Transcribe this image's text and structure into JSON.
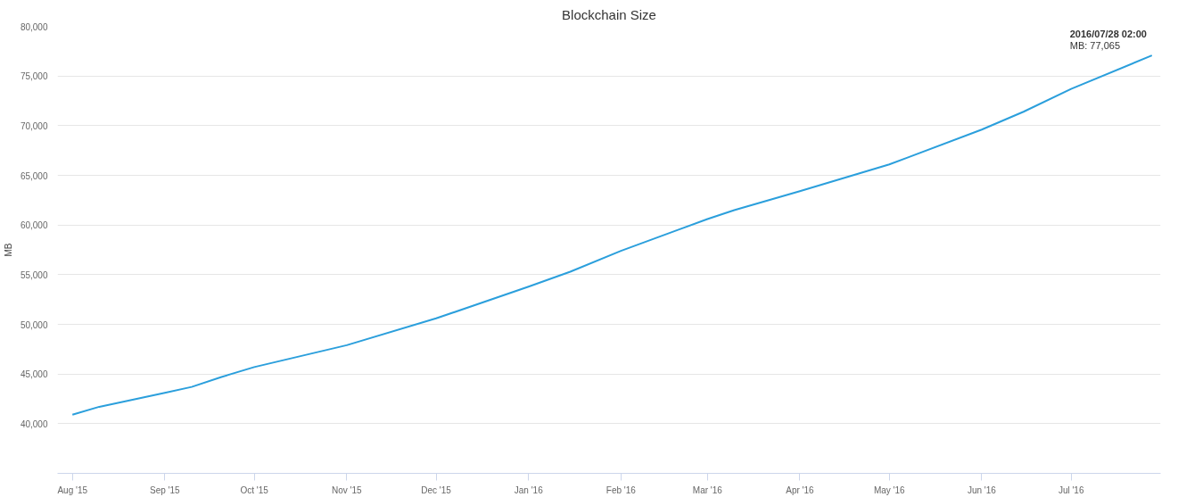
{
  "chart_data": {
    "type": "line",
    "title": "Blockchain Size",
    "ylabel": "MB",
    "x": [
      "2015-08-01",
      "2015-08-10",
      "2015-09-01",
      "2015-09-10",
      "2015-09-20",
      "2015-10-01",
      "2015-11-01",
      "2015-12-01",
      "2016-01-01",
      "2016-01-15",
      "2016-02-01",
      "2016-03-01",
      "2016-03-10",
      "2016-04-01",
      "2016-05-01",
      "2016-06-01",
      "2016-06-15",
      "2016-07-01",
      "2016-07-28T02:00"
    ],
    "series": [
      {
        "color": "#2b9fdc",
        "values": [
          40900,
          41700,
          43100,
          43700,
          44700,
          45700,
          47900,
          50600,
          53800,
          55300,
          57400,
          60600,
          61500,
          63400,
          66100,
          69600,
          71400,
          73700,
          77065
        ]
      }
    ],
    "xlim": [
      "2015-07-27",
      "2016-07-31"
    ],
    "xticks": [
      {
        "value": "2015-08-01",
        "label": "Aug '15"
      },
      {
        "value": "2015-09-01",
        "label": "Sep '15"
      },
      {
        "value": "2015-10-01",
        "label": "Oct '15"
      },
      {
        "value": "2015-11-01",
        "label": "Nov '15"
      },
      {
        "value": "2015-12-01",
        "label": "Dec '15"
      },
      {
        "value": "2016-01-01",
        "label": "Jan '16"
      },
      {
        "value": "2016-02-01",
        "label": "Feb '16"
      },
      {
        "value": "2016-03-01",
        "label": "Mar '16"
      },
      {
        "value": "2016-04-01",
        "label": "Apr '16"
      },
      {
        "value": "2016-05-01",
        "label": "May '16"
      },
      {
        "value": "2016-06-01",
        "label": "Jun '16"
      },
      {
        "value": "2016-07-01",
        "label": "Jul '16"
      }
    ],
    "ylim": [
      35000,
      80000
    ],
    "yticks": [
      {
        "value": 40000,
        "label": "40,000"
      },
      {
        "value": 45000,
        "label": "45,000"
      },
      {
        "value": 50000,
        "label": "50,000"
      },
      {
        "value": 55000,
        "label": "55,000"
      },
      {
        "value": 60000,
        "label": "60,000"
      },
      {
        "value": 65000,
        "label": "65,000"
      },
      {
        "value": 70000,
        "label": "70,000"
      },
      {
        "value": 75000,
        "label": "75,000"
      },
      {
        "value": 80000,
        "label": "80,000"
      }
    ],
    "grid": "y",
    "annotations": [
      {
        "text": "2016/07/28 02:00\nMB: 77,065",
        "x": "2016-07-28T02:00",
        "y": 77065
      }
    ]
  }
}
